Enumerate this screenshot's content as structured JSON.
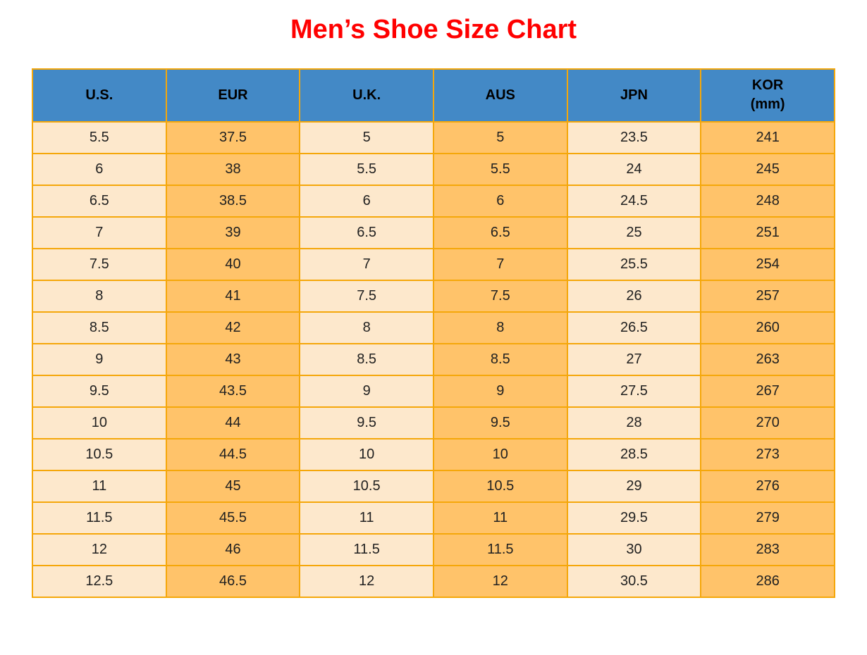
{
  "page": {
    "background": "#FFFFFF"
  },
  "colors": {
    "title_text": "#FF0000",
    "header_bg": "#4389C6",
    "header_text": "#000000",
    "column_light_bg": "#FDE8CC",
    "column_orange_bg": "#FFC36A",
    "grid_border": "#F5A70A",
    "cell_text": "#212121"
  },
  "chart_data": {
    "type": "table",
    "title": "Men’s Shoe Size Chart",
    "legend_position": "none",
    "grid": true,
    "columns": [
      {
        "label": "U.S."
      },
      {
        "label": "EUR"
      },
      {
        "label": "U.K."
      },
      {
        "label": "AUS"
      },
      {
        "label": "JPN"
      },
      {
        "label": "KOR",
        "sublabel": "(mm)"
      }
    ],
    "rows": [
      [
        "5.5",
        "37.5",
        "5",
        "5",
        "23.5",
        "241"
      ],
      [
        "6",
        "38",
        "5.5",
        "5.5",
        "24",
        "245"
      ],
      [
        "6.5",
        "38.5",
        "6",
        "6",
        "24.5",
        "248"
      ],
      [
        "7",
        "39",
        "6.5",
        "6.5",
        "25",
        "251"
      ],
      [
        "7.5",
        "40",
        "7",
        "7",
        "25.5",
        "254"
      ],
      [
        "8",
        "41",
        "7.5",
        "7.5",
        "26",
        "257"
      ],
      [
        "8.5",
        "42",
        "8",
        "8",
        "26.5",
        "260"
      ],
      [
        "9",
        "43",
        "8.5",
        "8.5",
        "27",
        "263"
      ],
      [
        "9.5",
        "43.5",
        "9",
        "9",
        "27.5",
        "267"
      ],
      [
        "10",
        "44",
        "9.5",
        "9.5",
        "28",
        "270"
      ],
      [
        "10.5",
        "44.5",
        "10",
        "10",
        "28.5",
        "273"
      ],
      [
        "11",
        "45",
        "10.5",
        "10.5",
        "29",
        "276"
      ],
      [
        "11.5",
        "45.5",
        "11",
        "11",
        "29.5",
        "279"
      ],
      [
        "12",
        "46",
        "11.5",
        "11.5",
        "30",
        "283"
      ],
      [
        "12.5",
        "46.5",
        "12",
        "12",
        "30.5",
        "286"
      ]
    ]
  }
}
